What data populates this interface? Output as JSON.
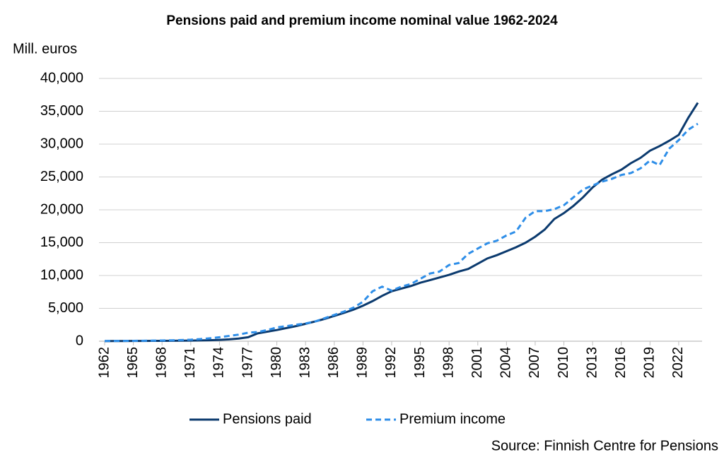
{
  "chart_data": {
    "type": "line",
    "title": "Pensions paid and premium income nominal value 1962-2024",
    "y_label": "Mill. euros",
    "source": "Source: Finnish Centre for Pensions",
    "x": [
      1962,
      1963,
      1964,
      1965,
      1966,
      1967,
      1968,
      1969,
      1970,
      1971,
      1972,
      1973,
      1974,
      1975,
      1976,
      1977,
      1978,
      1979,
      1980,
      1981,
      1982,
      1983,
      1984,
      1985,
      1986,
      1987,
      1988,
      1989,
      1990,
      1991,
      1992,
      1993,
      1994,
      1995,
      1996,
      1997,
      1998,
      1999,
      2000,
      2001,
      2002,
      2003,
      2004,
      2005,
      2006,
      2007,
      2008,
      2009,
      2010,
      2011,
      2012,
      2013,
      2014,
      2015,
      2016,
      2017,
      2018,
      2019,
      2020,
      2021,
      2022,
      2023,
      2024
    ],
    "series": [
      {
        "name": "Pensions paid",
        "color": "#0b3a6e",
        "dash": "solid",
        "values": [
          20,
          25,
          30,
          35,
          40,
          50,
          60,
          70,
          85,
          100,
          120,
          150,
          200,
          280,
          400,
          600,
          1200,
          1450,
          1700,
          2000,
          2300,
          2650,
          3000,
          3400,
          3850,
          4300,
          4800,
          5400,
          6100,
          6900,
          7600,
          8000,
          8400,
          8900,
          9300,
          9700,
          10100,
          10600,
          11000,
          11800,
          12600,
          13100,
          13700,
          14300,
          15000,
          15900,
          17000,
          18600,
          19500,
          20600,
          21900,
          23400,
          24600,
          25400,
          26100,
          27100,
          27900,
          29000,
          29700,
          30500,
          31400,
          34000,
          36300
        ]
      },
      {
        "name": "Premium income",
        "color": "#2e8ee8",
        "dash": "dashed",
        "values": [
          30,
          40,
          50,
          60,
          70,
          90,
          110,
          140,
          180,
          230,
          320,
          450,
          600,
          800,
          1000,
          1300,
          1400,
          1700,
          2100,
          2300,
          2500,
          2700,
          3000,
          3500,
          4000,
          4500,
          5100,
          6000,
          7600,
          8300,
          7700,
          8300,
          8700,
          9500,
          10300,
          10600,
          11600,
          11900,
          13300,
          14100,
          14900,
          15300,
          16100,
          16700,
          18800,
          19800,
          19800,
          20100,
          20700,
          21900,
          23100,
          23700,
          24300,
          24700,
          25300,
          25600,
          26300,
          27500,
          26800,
          29300,
          30600,
          32200,
          33100
        ]
      }
    ],
    "xlim": [
      1962,
      2024
    ],
    "xticks": [
      1962,
      1965,
      1968,
      1971,
      1974,
      1977,
      1980,
      1983,
      1986,
      1989,
      1992,
      1995,
      1998,
      2001,
      2004,
      2007,
      2010,
      2013,
      2016,
      2019,
      2022
    ],
    "ylim": [
      0,
      40000
    ],
    "yticks": [
      0,
      {
        "value": 5000,
        "label": "5,000"
      },
      {
        "value": 10000,
        "label": "10,000"
      },
      {
        "value": 15000,
        "label": "15,000"
      },
      {
        "value": 20000,
        "label": "20,000"
      },
      {
        "value": 25000,
        "label": "25,000"
      },
      {
        "value": 30000,
        "label": "30,000"
      },
      {
        "value": 35000,
        "label": "35,000"
      },
      {
        "value": 40000,
        "label": "40,000"
      }
    ],
    "grid": true,
    "legend": "bottom"
  }
}
